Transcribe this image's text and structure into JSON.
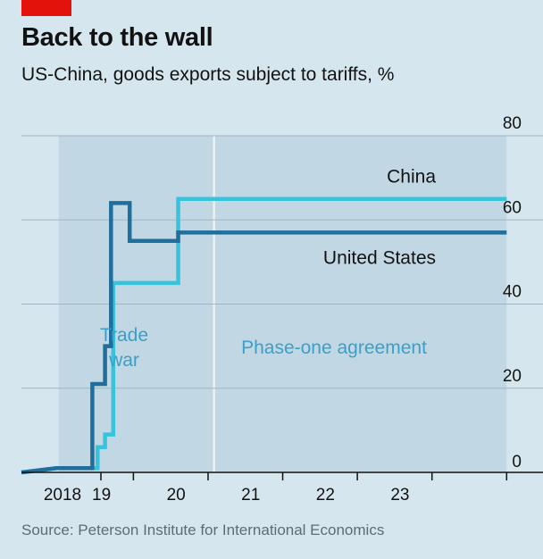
{
  "header": {
    "title": "Back to the wall",
    "subtitle": "US-China, goods exports subject to tariffs, %"
  },
  "source": "Source: Peterson Institute for International Economics",
  "colors": {
    "background": "#d6e6ee",
    "shade_period": "#c1d8e4",
    "united_states": "#1f6e9c",
    "china": "#36c3dc",
    "brand_red": "#e3120b",
    "period_label": "#3c9fc7"
  },
  "chart_data": {
    "type": "line",
    "title": "Back to the wall",
    "subtitle": "US-China, goods exports subject to tariffs, %",
    "xlabel": "",
    "ylabel": "",
    "xlim": [
      2017.5,
      2024.2
    ],
    "ylim": [
      0,
      80
    ],
    "yticks": [
      0,
      20,
      40,
      60,
      80
    ],
    "xtick_labels": [
      {
        "label": "2018",
        "value": 2018.0
      },
      {
        "label": "19",
        "value": 2019.0
      },
      {
        "label": "20",
        "value": 2020.0
      },
      {
        "label": "21",
        "value": 2021.0
      },
      {
        "label": "22",
        "value": 2022.0
      },
      {
        "label": "23",
        "value": 2023.0
      }
    ],
    "grid": true,
    "step": true,
    "periods": [
      {
        "name": "Trade war",
        "label_lines": [
          "Trade",
          "war"
        ],
        "start": 2018.0,
        "end": 2020.08
      },
      {
        "name": "Phase-one agreement",
        "label_lines": [
          "Phase-one agreement"
        ],
        "start": 2020.08,
        "end": 2024.0
      }
    ],
    "series": [
      {
        "name": "China",
        "color": "#36c3dc",
        "points": [
          [
            2017.5,
            0
          ],
          [
            2017.97,
            1
          ],
          [
            2018.52,
            1
          ],
          [
            2018.52,
            6
          ],
          [
            2018.62,
            6
          ],
          [
            2018.62,
            9
          ],
          [
            2018.73,
            9
          ],
          [
            2018.73,
            45
          ],
          [
            2019.6,
            45
          ],
          [
            2019.6,
            65
          ],
          [
            2024.0,
            65
          ]
        ]
      },
      {
        "name": "United States",
        "color": "#1f6e9c",
        "points": [
          [
            2017.5,
            0
          ],
          [
            2017.97,
            1
          ],
          [
            2018.45,
            1
          ],
          [
            2018.45,
            21
          ],
          [
            2018.62,
            21
          ],
          [
            2018.62,
            30
          ],
          [
            2018.7,
            30
          ],
          [
            2018.7,
            64
          ],
          [
            2018.95,
            64
          ],
          [
            2018.95,
            55
          ],
          [
            2019.6,
            55
          ],
          [
            2019.6,
            57
          ],
          [
            2024.0,
            57
          ]
        ]
      }
    ]
  }
}
